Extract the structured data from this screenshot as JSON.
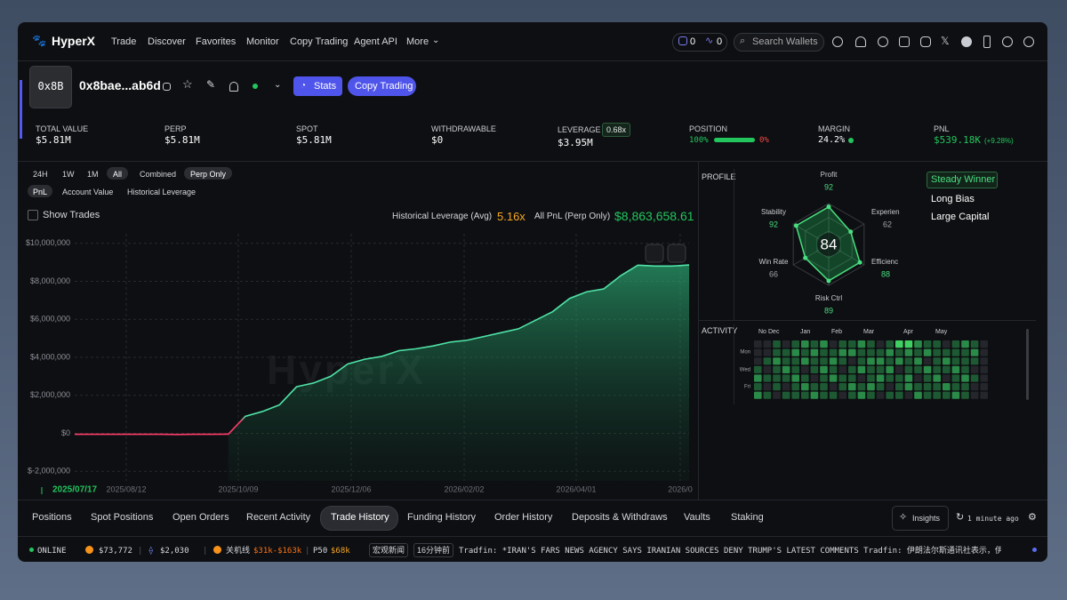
{
  "nav": {
    "brand": "HyperX",
    "links": [
      "Trade",
      "Discover",
      "Favorites",
      "Monitor",
      "Copy Trading",
      "Agent API",
      "More"
    ],
    "counter1": "0",
    "counter2": "0",
    "search": "Search Wallets"
  },
  "header": {
    "avatar": "0x8B",
    "address": "0x8bae...ab6d",
    "stats_button": "Stats",
    "copy_button": "Copy Trading"
  },
  "summary": [
    {
      "label": "TOTAL VALUE",
      "value": "$5.81M"
    },
    {
      "label": "PERP",
      "value": "$5.81M"
    },
    {
      "label": "SPOT",
      "value": "$5.81M"
    },
    {
      "label": "WITHDRAWABLE",
      "value": "$0"
    },
    {
      "label": "LEVERAGE",
      "badge": "0.68x",
      "value": "$3.95M"
    },
    {
      "label": "POSITION",
      "value": "100%",
      "value2": "0%"
    },
    {
      "label": "MARGIN",
      "value": "24.2%"
    },
    {
      "label": "PNL",
      "value": "$539.18K",
      "change": "(+9.28%)"
    }
  ],
  "chart_controls": {
    "ranges": [
      "24H",
      "1W",
      "1M",
      "All"
    ],
    "modes": [
      "Combined",
      "Perp Only"
    ],
    "metrics": [
      "PnL",
      "Account Value",
      "Historical Leverage"
    ],
    "show_trades": "Show Trades",
    "leverage_label": "Historical Leverage (Avg)",
    "leverage_value": "5.16x",
    "pnl_label": "All PnL (Perp Only)",
    "pnl_value": "$8,863,658.61",
    "watermark": "HyperX"
  },
  "chart_data": {
    "type": "area",
    "color": "#4fe3a8",
    "negative_color": "#ff3b6b",
    "grid": true,
    "values": [
      -50000,
      -50000,
      -50000,
      -50000,
      -50000,
      -50000,
      -60000,
      -50000,
      -50000,
      -40000,
      900000,
      1150000,
      1500000,
      2450000,
      2650000,
      3000000,
      3650000,
      3900000,
      4050000,
      4350000,
      4450000,
      4600000,
      4800000,
      4900000,
      5100000,
      5300000,
      5500000,
      5950000,
      6400000,
      7100000,
      7450000,
      7600000,
      8300000,
      8850000,
      8800000,
      8800000,
      8860000
    ],
    "ylim": [
      -2500000,
      10500000
    ],
    "yticks": [
      {
        "value": -2000000,
        "label": "$-2,000,000"
      },
      {
        "value": 0,
        "label": "$0"
      },
      {
        "value": 2000000,
        "label": "$2,000,000"
      },
      {
        "value": 4000000,
        "label": "$4,000,000"
      },
      {
        "value": 6000000,
        "label": "$6,000,000"
      },
      {
        "value": 8000000,
        "label": "$8,000,000"
      },
      {
        "value": 10000000,
        "label": "$10,000,000"
      }
    ],
    "x_labels": [
      "2025/07/17",
      "2025/08/12",
      "2025/10/09",
      "2025/12/06",
      "2026/02/02",
      "2026/04/01",
      "2026/0"
    ]
  },
  "profile": {
    "label": "PROFILE",
    "score": 84,
    "axes": [
      {
        "name": "Profit",
        "value": 92
      },
      {
        "name": "Experien",
        "value": 62
      },
      {
        "name": "Efficienc",
        "value": 88
      },
      {
        "name": "Risk Ctrl",
        "value": 89
      },
      {
        "name": "Win Rate",
        "value": 66
      },
      {
        "name": "Stability",
        "value": 92
      }
    ],
    "tags": [
      "Steady Winner",
      "Long Bias",
      "Large Capital"
    ]
  },
  "activity": {
    "label": "ACTIVITY",
    "months": [
      "No",
      "Dec",
      "Jan",
      "Feb",
      "Mar",
      "Apr",
      "May"
    ],
    "days": [
      "Mon",
      "Wed",
      "Fri"
    ],
    "levels": [
      [
        0,
        0,
        1,
        0,
        1,
        2,
        1,
        2,
        0,
        1,
        1,
        2,
        1,
        0,
        1,
        3,
        3,
        2,
        1,
        1,
        0,
        1,
        2,
        1,
        0
      ],
      [
        0,
        0,
        1,
        1,
        2,
        1,
        2,
        1,
        1,
        2,
        2,
        1,
        1,
        1,
        2,
        1,
        2,
        1,
        2,
        1,
        1,
        1,
        1,
        2,
        0
      ],
      [
        0,
        1,
        2,
        1,
        1,
        2,
        1,
        1,
        2,
        1,
        0,
        1,
        2,
        2,
        1,
        2,
        1,
        2,
        0,
        1,
        2,
        1,
        1,
        1,
        0
      ],
      [
        1,
        0,
        1,
        2,
        1,
        0,
        1,
        2,
        1,
        0,
        1,
        2,
        1,
        1,
        2,
        0,
        1,
        1,
        2,
        1,
        1,
        2,
        1,
        0,
        0
      ],
      [
        2,
        1,
        1,
        1,
        2,
        1,
        0,
        1,
        2,
        1,
        1,
        0,
        1,
        2,
        1,
        1,
        2,
        0,
        1,
        2,
        0,
        1,
        2,
        1,
        0
      ],
      [
        1,
        0,
        1,
        0,
        1,
        2,
        1,
        1,
        0,
        1,
        2,
        1,
        2,
        1,
        0,
        1,
        2,
        1,
        1,
        1,
        2,
        1,
        1,
        0,
        0
      ],
      [
        2,
        1,
        0,
        1,
        1,
        1,
        2,
        1,
        1,
        0,
        1,
        2,
        1,
        0,
        1,
        1,
        0,
        2,
        1,
        1,
        1,
        2,
        1,
        0,
        0
      ]
    ]
  },
  "tabs": {
    "items": [
      "Positions",
      "Spot Positions",
      "Open Orders",
      "Recent Activity",
      "Trade History",
      "Funding History",
      "Order History",
      "Deposits & Withdraws",
      "Vaults",
      "Staking"
    ],
    "insights": "Insights",
    "updated": "1 minute ago"
  },
  "ticker": {
    "status": "ONLINE",
    "btc": "$73,772",
    "eth": "$2,030",
    "label1": "关机线",
    "range": "$31k-$163k",
    "p50_label": "P50",
    "p50": "$68k",
    "news_tag": "宏观新闻",
    "time": "16分钟前",
    "news": "Tradfin: *IRAN'S FARS NEWS AGENCY SAYS IRANIAN SOURCES DENY TRUMP'S LATEST COMMENTS Tradfin: 伊朗法尔斯通讯社表示，伊朗消息人士否认"
  }
}
